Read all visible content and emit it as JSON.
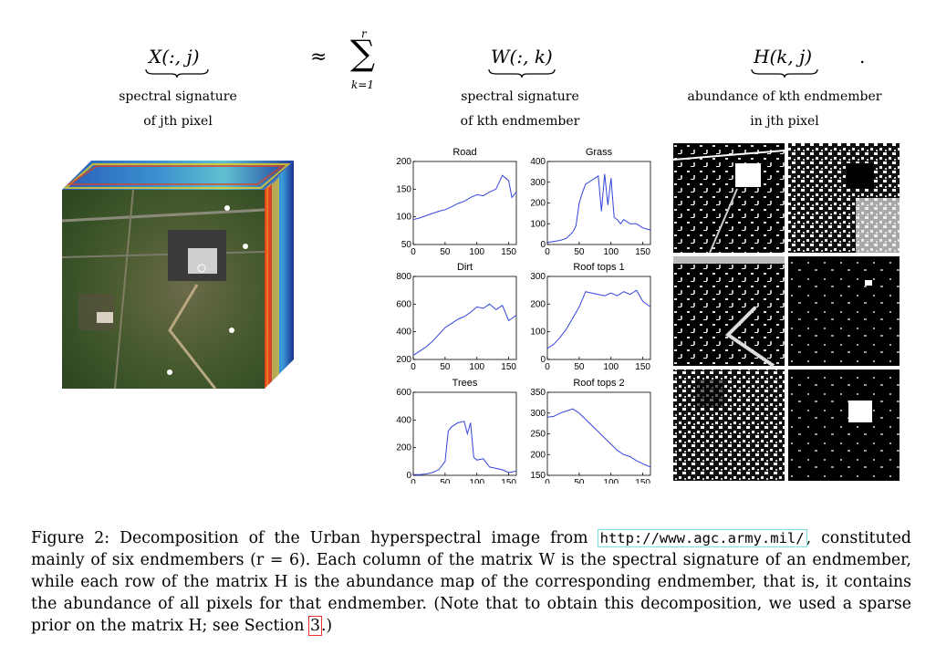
{
  "equation": {
    "lhs": "X(:, j)",
    "approx": "≈",
    "sum_symbol": "∑",
    "sum_upper": "r",
    "sum_lower": "k=1",
    "w_term": "W(:, k)",
    "h_term": "H(k, j)",
    "period": ".",
    "lhs_label_1": "spectral signature",
    "lhs_label_2": "of jth pixel",
    "w_label_1": "spectral signature",
    "w_label_2": "of kth endmember",
    "h_label_1": "abundance of kth endmember",
    "h_label_2": "in jth pixel"
  },
  "chart_data": [
    {
      "type": "line",
      "title": "Road",
      "x_ticks": [
        "0",
        "50",
        "100",
        "150"
      ],
      "y_ticks": [
        "50",
        "100",
        "150",
        "200"
      ],
      "ylim": [
        50,
        200
      ],
      "xlim": [
        0,
        162
      ],
      "x": [
        0,
        10,
        20,
        30,
        40,
        50,
        60,
        70,
        80,
        90,
        100,
        110,
        120,
        130,
        140,
        150,
        155,
        162
      ],
      "y": [
        95,
        98,
        102,
        106,
        110,
        113,
        118,
        124,
        128,
        135,
        140,
        138,
        145,
        150,
        175,
        165,
        135,
        145
      ]
    },
    {
      "type": "line",
      "title": "Grass",
      "x_ticks": [
        "0",
        "50",
        "100",
        "150"
      ],
      "y_ticks": [
        "0",
        "100",
        "200",
        "300",
        "400"
      ],
      "ylim": [
        0,
        400
      ],
      "xlim": [
        0,
        162
      ],
      "x": [
        0,
        10,
        20,
        30,
        40,
        45,
        50,
        55,
        60,
        70,
        75,
        80,
        85,
        90,
        95,
        100,
        105,
        110,
        115,
        120,
        130,
        140,
        150,
        162
      ],
      "y": [
        10,
        15,
        20,
        30,
        60,
        90,
        200,
        250,
        290,
        310,
        320,
        330,
        160,
        340,
        190,
        320,
        130,
        120,
        100,
        120,
        100,
        100,
        80,
        70
      ]
    },
    {
      "type": "line",
      "title": "Dirt",
      "x_ticks": [
        "0",
        "50",
        "100",
        "150"
      ],
      "y_ticks": [
        "200",
        "400",
        "600",
        "800"
      ],
      "ylim": [
        200,
        800
      ],
      "xlim": [
        0,
        162
      ],
      "x": [
        0,
        10,
        20,
        30,
        40,
        50,
        60,
        70,
        80,
        90,
        100,
        110,
        120,
        130,
        140,
        150,
        162
      ],
      "y": [
        230,
        260,
        290,
        330,
        380,
        430,
        460,
        490,
        510,
        540,
        580,
        570,
        600,
        560,
        590,
        480,
        520
      ]
    },
    {
      "type": "line",
      "title": "Roof tops 1",
      "x_ticks": [
        "0",
        "50",
        "100",
        "150"
      ],
      "y_ticks": [
        "0",
        "100",
        "200",
        "300"
      ],
      "ylim": [
        0,
        300
      ],
      "xlim": [
        0,
        162
      ],
      "x": [
        0,
        10,
        20,
        30,
        40,
        50,
        60,
        70,
        80,
        90,
        100,
        110,
        120,
        130,
        140,
        150,
        162
      ],
      "y": [
        40,
        55,
        80,
        110,
        150,
        190,
        245,
        240,
        235,
        230,
        240,
        230,
        245,
        235,
        250,
        210,
        190
      ]
    },
    {
      "type": "line",
      "title": "Trees",
      "x_ticks": [
        "0",
        "50",
        "100",
        "150"
      ],
      "y_ticks": [
        "0",
        "200",
        "400",
        "600"
      ],
      "ylim": [
        0,
        600
      ],
      "xlim": [
        0,
        162
      ],
      "x": [
        0,
        10,
        20,
        30,
        40,
        50,
        55,
        60,
        70,
        80,
        85,
        90,
        95,
        100,
        110,
        120,
        130,
        140,
        150,
        162
      ],
      "y": [
        5,
        5,
        10,
        20,
        40,
        100,
        320,
        350,
        380,
        390,
        300,
        380,
        130,
        110,
        120,
        60,
        50,
        40,
        20,
        30
      ]
    },
    {
      "type": "line",
      "title": "Roof tops 2",
      "x_ticks": [
        "0",
        "50",
        "100",
        "150"
      ],
      "y_ticks": [
        "150",
        "200",
        "250",
        "300",
        "350"
      ],
      "ylim": [
        150,
        350
      ],
      "xlim": [
        0,
        162
      ],
      "x": [
        0,
        10,
        20,
        30,
        40,
        50,
        60,
        70,
        80,
        90,
        100,
        110,
        120,
        130,
        140,
        150,
        162
      ],
      "y": [
        290,
        292,
        300,
        305,
        310,
        300,
        285,
        270,
        255,
        240,
        225,
        210,
        200,
        195,
        185,
        178,
        170
      ]
    }
  ],
  "caption": {
    "prefix": "Figure 2:  Decomposition of the Urban hyperspectral image from ",
    "url": "http://www.agc.army.mil/",
    "middle": ", constituted mainly of six endmembers (r = 6). Each column of the matrix W is the spectral signature of an endmember, while each row of the matrix H is the abundance map of the corresponding endmember, that is, it contains the abundance of all pixels for that endmember.  (Note that to obtain this decomposition, we used a sparse prior on the matrix H; see Section ",
    "ref": "3",
    "suffix": ".)"
  },
  "colors": {
    "line": "#3344dd",
    "ground": "#3c5a2a",
    "url_box": "#7fdede",
    "ref_box": "#e33333"
  }
}
